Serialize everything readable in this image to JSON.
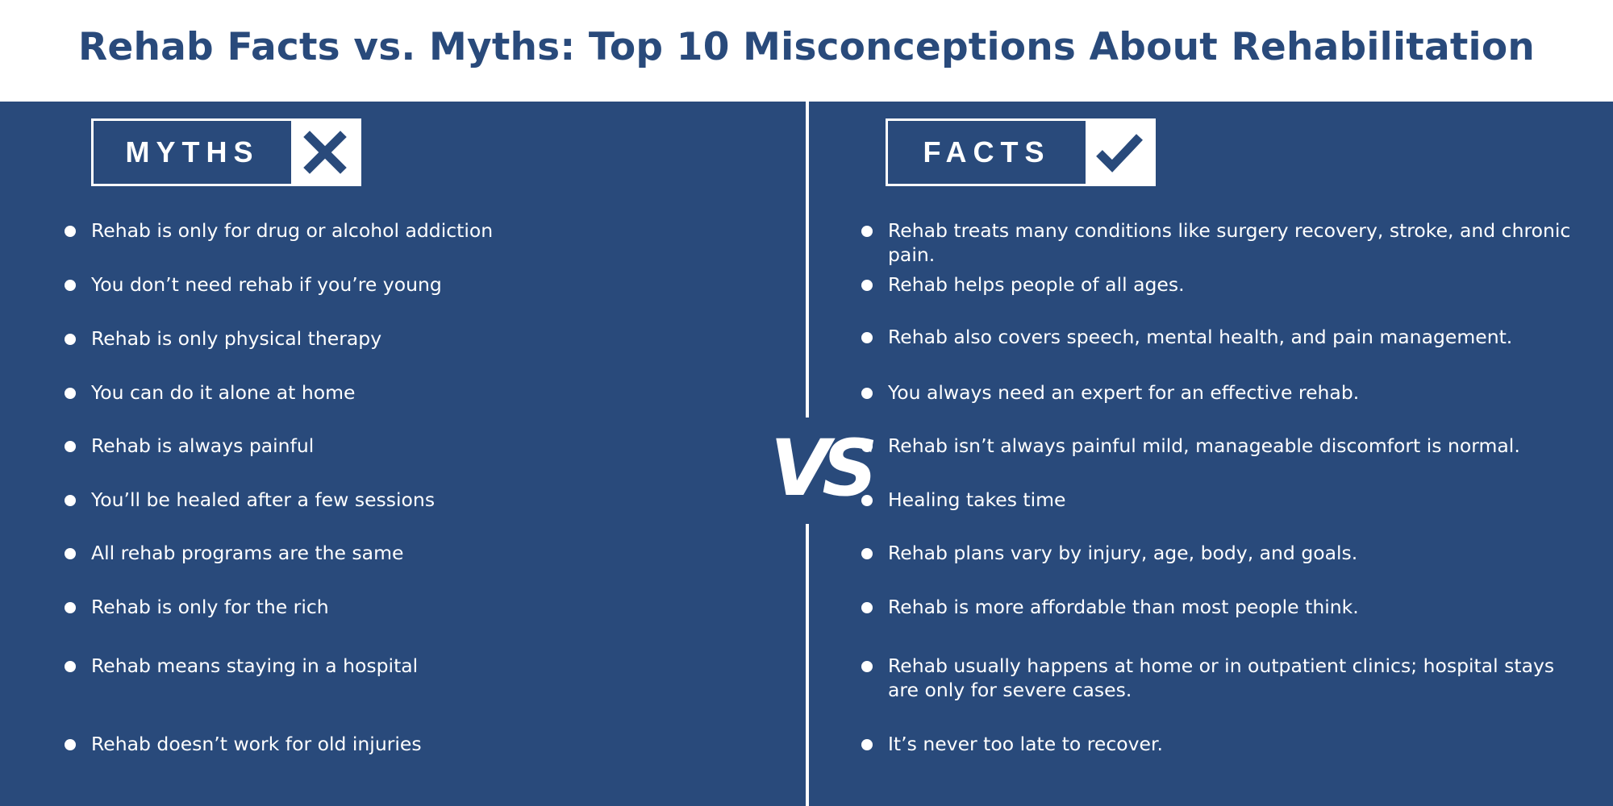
{
  "header": {
    "title": "Rehab Facts vs. Myths: Top 10 Misconceptions About Rehabilitation"
  },
  "colors": {
    "primary": "#294a7b",
    "background": "#ffffff",
    "text_on_primary": "#ffffff"
  },
  "myths": {
    "label": "MYTHS",
    "icon": "x-icon",
    "items": [
      "Rehab is only for drug or alcohol addiction",
      "You don’t need rehab if you’re young",
      "Rehab is only physical therapy",
      "You can do it alone at home",
      "Rehab is always painful",
      "You’ll be healed after a few sessions",
      "All rehab programs are the same",
      "Rehab is only for the rich",
      "Rehab means staying in a hospital",
      "Rehab doesn’t work for old injuries"
    ]
  },
  "vs_label": "VS",
  "facts": {
    "label": "FACTS",
    "icon": "check-icon",
    "items": [
      "Rehab treats many conditions like surgery recovery, stroke, and chronic pain.",
      "Rehab helps people of all ages.",
      "Rehab also covers speech, mental health, and pain management.",
      "You always need an expert for an effective rehab.",
      "Rehab isn’t always painful mild, manageable discomfort is normal.",
      "Healing takes time",
      "Rehab plans vary by injury, age, body, and goals.",
      "Rehab is more affordable than most people think.",
      "Rehab usually happens at home or in outpatient clinics; hospital stays are only for severe cases.",
      "It’s never too late to recover."
    ]
  }
}
